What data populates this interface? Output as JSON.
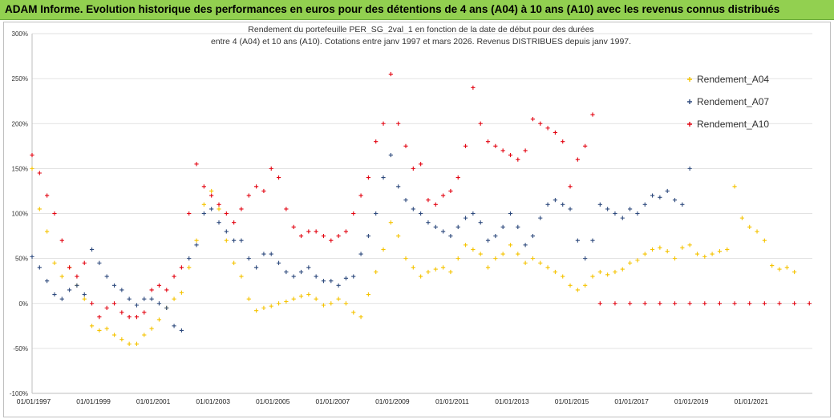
{
  "banner": {
    "text": "ADAM Informe. Evolution historique des performances en euros pour des détentions de 4 ans (A04) à 10 ans (A10) avec les revenus connus distribués"
  },
  "colors": {
    "banner_bg": "#92d050",
    "A04": "#f5c300",
    "A07": "#2e4a7d",
    "A10": "#e30613"
  },
  "chart_data": {
    "type": "scatter",
    "title": "Rendement du portefeuille PER_SG_2val_1 en fonction de la date de début pour des durées",
    "subtitle": "entre 4 (A04) et 10 ans (A10). Cotations entre janv 1997 et mars 2026. Revenus DISTRIBUES depuis janv 1997.",
    "xlabel": "",
    "ylabel": "",
    "ylim": [
      -100,
      300
    ],
    "xlim": [
      "1997-01-01",
      "2023-06-01"
    ],
    "y_ticks": [
      "300%",
      "250%",
      "200%",
      "150%",
      "100%",
      "50%",
      "0%",
      "-50%",
      "-100%"
    ],
    "y_tick_values": [
      300,
      250,
      200,
      150,
      100,
      50,
      0,
      -50,
      -100
    ],
    "x_ticks": [
      "01/01/1997",
      "01/01/1999",
      "01/01/2001",
      "01/01/2003",
      "01/01/2005",
      "01/01/2007",
      "01/01/2009",
      "01/01/2011",
      "01/01/2013",
      "01/01/2015",
      "01/01/2017",
      "01/01/2019",
      "01/01/2021"
    ],
    "x_tick_years": [
      1997,
      1999,
      2001,
      2003,
      2005,
      2007,
      2009,
      2011,
      2013,
      2015,
      2017,
      2019,
      2021
    ],
    "legend_position": "right",
    "marker": "+",
    "series": [
      {
        "name": "Rendement_A04",
        "color": "#f5c300",
        "x": [
          1997.0,
          1997.25,
          1997.5,
          1997.75,
          1998.0,
          1998.25,
          1998.5,
          1998.75,
          1999.0,
          1999.25,
          1999.5,
          1999.75,
          2000.0,
          2000.25,
          2000.5,
          2000.75,
          2001.0,
          2001.25,
          2001.5,
          2001.75,
          2002.0,
          2002.25,
          2002.5,
          2002.75,
          2003.0,
          2003.25,
          2003.5,
          2003.75,
          2004.0,
          2004.25,
          2004.5,
          2004.75,
          2005.0,
          2005.25,
          2005.5,
          2005.75,
          2006.0,
          2006.25,
          2006.5,
          2006.75,
          2007.0,
          2007.25,
          2007.5,
          2007.75,
          2008.0,
          2008.25,
          2008.5,
          2008.75,
          2009.0,
          2009.25,
          2009.5,
          2009.75,
          2010.0,
          2010.25,
          2010.5,
          2010.75,
          2011.0,
          2011.25,
          2011.5,
          2011.75,
          2012.0,
          2012.25,
          2012.5,
          2012.75,
          2013.0,
          2013.25,
          2013.5,
          2013.75,
          2014.0,
          2014.25,
          2014.5,
          2014.75,
          2015.0,
          2015.25,
          2015.5,
          2015.75,
          2016.0,
          2016.25,
          2016.5,
          2016.75,
          2017.0,
          2017.25,
          2017.5,
          2017.75,
          2018.0,
          2018.25,
          2018.5,
          2018.75,
          2019.0,
          2019.25,
          2019.5,
          2019.75,
          2020.0,
          2020.25,
          2020.5,
          2020.75,
          2021.0,
          2021.25,
          2021.5,
          2021.75,
          2022.0,
          2022.25,
          2022.5
        ],
        "values": [
          150,
          105,
          80,
          45,
          30,
          40,
          20,
          5,
          -25,
          -30,
          -28,
          -35,
          -40,
          -45,
          -45,
          -35,
          -28,
          -18,
          -5,
          5,
          12,
          40,
          70,
          110,
          125,
          105,
          70,
          45,
          30,
          5,
          -8,
          -5,
          -3,
          0,
          2,
          5,
          8,
          10,
          5,
          -2,
          0,
          5,
          0,
          -10,
          -15,
          10,
          35,
          60,
          90,
          75,
          50,
          40,
          30,
          35,
          38,
          40,
          35,
          50,
          65,
          60,
          55,
          40,
          50,
          55,
          65,
          55,
          45,
          50,
          45,
          40,
          35,
          30,
          20,
          15,
          20,
          30,
          35,
          32,
          35,
          38,
          45,
          48,
          55,
          60,
          62,
          58,
          50,
          62,
          65,
          55,
          52,
          55,
          58,
          60,
          130,
          95,
          85,
          80,
          70,
          42,
          38,
          40,
          35
        ]
      },
      {
        "name": "Rendement_A07",
        "color": "#2e4a7d",
        "x": [
          1997.0,
          1997.25,
          1997.5,
          1997.75,
          1998.0,
          1998.25,
          1998.5,
          1998.75,
          1999.0,
          1999.25,
          1999.5,
          1999.75,
          2000.0,
          2000.25,
          2000.5,
          2000.75,
          2001.0,
          2001.25,
          2001.5,
          2001.75,
          2002.0,
          2002.25,
          2002.5,
          2002.75,
          2003.0,
          2003.25,
          2003.5,
          2003.75,
          2004.0,
          2004.25,
          2004.5,
          2004.75,
          2005.0,
          2005.25,
          2005.5,
          2005.75,
          2006.0,
          2006.25,
          2006.5,
          2006.75,
          2007.0,
          2007.25,
          2007.5,
          2007.75,
          2008.0,
          2008.25,
          2008.5,
          2008.75,
          2009.0,
          2009.25,
          2009.5,
          2009.75,
          2010.0,
          2010.25,
          2010.5,
          2010.75,
          2011.0,
          2011.25,
          2011.5,
          2011.75,
          2012.0,
          2012.25,
          2012.5,
          2012.75,
          2013.0,
          2013.25,
          2013.5,
          2013.75,
          2014.0,
          2014.25,
          2014.5,
          2014.75,
          2015.0,
          2015.25,
          2015.5,
          2015.75,
          2016.0,
          2016.25,
          2016.5,
          2016.75,
          2017.0,
          2017.25,
          2017.5,
          2017.75,
          2018.0,
          2018.25,
          2018.5,
          2018.75,
          2019.0
        ],
        "values": [
          52,
          40,
          25,
          10,
          5,
          15,
          20,
          10,
          60,
          45,
          30,
          20,
          15,
          5,
          -2,
          5,
          5,
          0,
          -5,
          -25,
          -30,
          50,
          65,
          100,
          105,
          90,
          80,
          70,
          70,
          50,
          40,
          55,
          55,
          45,
          35,
          30,
          35,
          40,
          30,
          25,
          25,
          20,
          28,
          30,
          55,
          75,
          100,
          140,
          165,
          130,
          115,
          105,
          100,
          90,
          85,
          80,
          75,
          85,
          95,
          100,
          90,
          70,
          75,
          85,
          100,
          85,
          65,
          75,
          95,
          110,
          115,
          110,
          105,
          70,
          50,
          70,
          110,
          105,
          100,
          95,
          105,
          100,
          110,
          120,
          118,
          125,
          115,
          110,
          150
        ]
      },
      {
        "name": "Rendement_A10",
        "color": "#e30613",
        "x": [
          1997.0,
          1997.25,
          1997.5,
          1997.75,
          1998.0,
          1998.25,
          1998.5,
          1998.75,
          1999.0,
          1999.25,
          1999.5,
          1999.75,
          2000.0,
          2000.25,
          2000.5,
          2000.75,
          2001.0,
          2001.25,
          2001.5,
          2001.75,
          2002.0,
          2002.25,
          2002.5,
          2002.75,
          2003.0,
          2003.25,
          2003.5,
          2003.75,
          2004.0,
          2004.25,
          2004.5,
          2004.75,
          2005.0,
          2005.25,
          2005.5,
          2005.75,
          2006.0,
          2006.25,
          2006.5,
          2006.75,
          2007.0,
          2007.25,
          2007.5,
          2007.75,
          2008.0,
          2008.25,
          2008.5,
          2008.75,
          2009.0,
          2009.25,
          2009.5,
          2009.75,
          2010.0,
          2010.25,
          2010.5,
          2010.75,
          2011.0,
          2011.25,
          2011.5,
          2011.75,
          2012.0,
          2012.25,
          2012.5,
          2012.75,
          2013.0,
          2013.25,
          2013.5,
          2013.75,
          2014.0,
          2014.25,
          2014.5,
          2014.75,
          2015.0,
          2015.25,
          2015.5,
          2015.75,
          2016.0,
          2016.5,
          2017.0,
          2017.5,
          2018.0,
          2018.5,
          2019.0,
          2019.5,
          2020.0,
          2020.5,
          2021.0,
          2021.5,
          2022.0,
          2022.5,
          2023.0
        ],
        "values": [
          165,
          145,
          120,
          100,
          70,
          40,
          30,
          45,
          0,
          -15,
          -5,
          0,
          -10,
          -15,
          -15,
          -10,
          15,
          20,
          15,
          30,
          40,
          100,
          155,
          130,
          120,
          110,
          100,
          90,
          105,
          120,
          130,
          125,
          150,
          140,
          105,
          85,
          75,
          80,
          80,
          75,
          70,
          75,
          80,
          100,
          120,
          140,
          180,
          200,
          255,
          200,
          175,
          150,
          155,
          115,
          110,
          120,
          125,
          140,
          175,
          240,
          200,
          180,
          175,
          170,
          165,
          160,
          170,
          205,
          200,
          195,
          190,
          180,
          130,
          160,
          175,
          210,
          0,
          0,
          0,
          0,
          0,
          0,
          0,
          0,
          0,
          0,
          0,
          0,
          0,
          0,
          0
        ]
      }
    ]
  }
}
